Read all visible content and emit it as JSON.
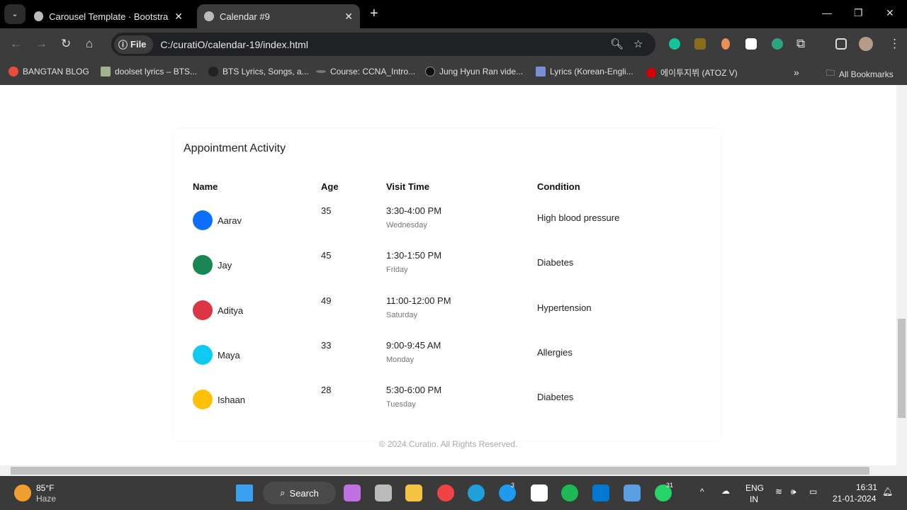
{
  "browser": {
    "tabs": [
      {
        "title": "Carousel Template · Bootstrap v",
        "active": false
      },
      {
        "title": "Calendar #9",
        "active": true
      }
    ],
    "address": {
      "scheme_label": "File",
      "url": "C:/curatiO/calendar-19/index.html"
    },
    "bookmarks": [
      {
        "label": "BANGTAN BLOG",
        "color": "#e74c3c"
      },
      {
        "label": "doolset lyrics – BTS...",
        "color": "#9fb38f"
      },
      {
        "label": "BTS Lyrics, Songs, a...",
        "color": "#222222"
      },
      {
        "label": "Course: CCNA_Intro...",
        "color": "#777777"
      },
      {
        "label": "Jung Hyun Ran vide...",
        "color": "#111111"
      },
      {
        "label": "Lyrics (Korean-Engli...",
        "color": "#7b8fd1"
      },
      {
        "label": "에이투지뷔 (ATOZ V)",
        "color": "#d00000"
      }
    ],
    "all_bookmarks": "All Bookmarks"
  },
  "page": {
    "card_title": "Appointment Activity",
    "columns": [
      "Name",
      "Age",
      "Visit Time",
      "Condition"
    ],
    "rows": [
      {
        "name": "Aarav",
        "age": "35",
        "time": "3:30-4:00 PM",
        "day": "Wednesday",
        "condition": "High blood pressure",
        "color": "#0d6efd"
      },
      {
        "name": "Jay",
        "age": "45",
        "time": "1:30-1:50 PM",
        "day": "Friday",
        "condition": "Diabetes",
        "color": "#198754"
      },
      {
        "name": "Aditya",
        "age": "49",
        "time": "11:00-12:00 PM",
        "day": "Saturday",
        "condition": "Hypertension",
        "color": "#dc3545"
      },
      {
        "name": "Maya",
        "age": "33",
        "time": "9:00-9:45 AM",
        "day": "Monday",
        "condition": "Allergies",
        "color": "#0dcaf0"
      },
      {
        "name": "Ishaan",
        "age": "28",
        "time": "5:30-6:00 PM",
        "day": "Tuesday",
        "condition": "Diabetes",
        "color": "#ffc107"
      }
    ],
    "footer": "© 2024 Curatio. All Rights Reserved."
  },
  "taskbar": {
    "weather": {
      "temp": "85°F",
      "condition": "Haze"
    },
    "search_label": "Search",
    "badges": {
      "twitter": "3",
      "whatsapp": "31"
    },
    "language": {
      "lang": "ENG",
      "region": "IN"
    },
    "time": "16:31",
    "date": "21-01-2024"
  }
}
